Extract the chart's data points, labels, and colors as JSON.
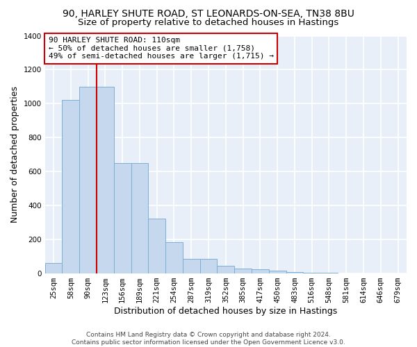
{
  "title_line1": "90, HARLEY SHUTE ROAD, ST LEONARDS-ON-SEA, TN38 8BU",
  "title_line2": "Size of property relative to detached houses in Hastings",
  "xlabel": "Distribution of detached houses by size in Hastings",
  "ylabel": "Number of detached properties",
  "footer_line1": "Contains HM Land Registry data © Crown copyright and database right 2024.",
  "footer_line2": "Contains public sector information licensed under the Open Government Licence v3.0.",
  "bar_labels": [
    "25sqm",
    "58sqm",
    "90sqm",
    "123sqm",
    "156sqm",
    "189sqm",
    "221sqm",
    "254sqm",
    "287sqm",
    "319sqm",
    "352sqm",
    "385sqm",
    "417sqm",
    "450sqm",
    "483sqm",
    "516sqm",
    "548sqm",
    "581sqm",
    "614sqm",
    "646sqm",
    "679sqm"
  ],
  "bar_values": [
    62,
    1020,
    1100,
    1100,
    650,
    650,
    325,
    185,
    88,
    88,
    45,
    28,
    25,
    15,
    10,
    5,
    3,
    2,
    0,
    0,
    0
  ],
  "bar_color": "#c5d8ee",
  "bar_edge_color": "#7bafd4",
  "background_color": "#e8eff8",
  "grid_color": "#ffffff",
  "ylim": [
    0,
    1400
  ],
  "yticks": [
    0,
    200,
    400,
    600,
    800,
    1000,
    1200,
    1400
  ],
  "red_line_x": 2.5,
  "annotation_text": "90 HARLEY SHUTE ROAD: 110sqm\n← 50% of detached houses are smaller (1,758)\n49% of semi-detached houses are larger (1,715) →",
  "annotation_box_facecolor": "#ffffff",
  "annotation_box_edgecolor": "#cc0000",
  "title_fontsize": 10,
  "subtitle_fontsize": 9.5,
  "axis_label_fontsize": 9,
  "tick_fontsize": 7.5,
  "annotation_fontsize": 8,
  "footer_fontsize": 6.5
}
